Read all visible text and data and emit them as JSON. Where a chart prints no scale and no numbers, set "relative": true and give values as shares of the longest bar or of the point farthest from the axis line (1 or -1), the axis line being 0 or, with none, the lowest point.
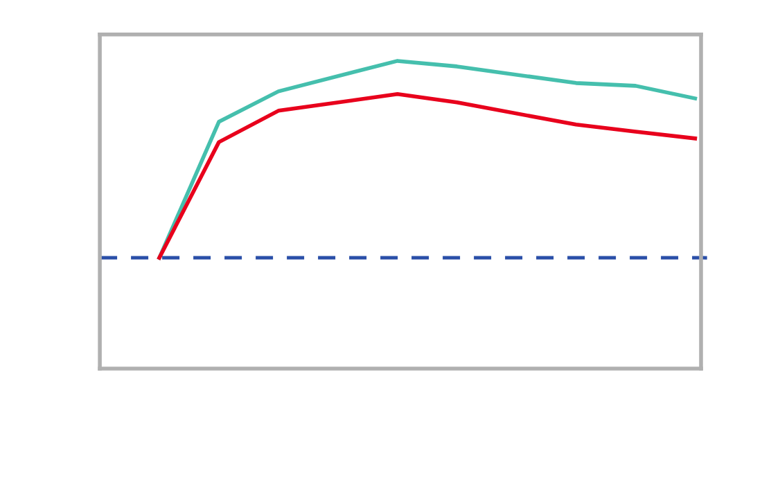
{
  "chart_data": {
    "type": "line",
    "relative": true,
    "categories": [
      null,
      null,
      null,
      null,
      null,
      null,
      null,
      null,
      null,
      null,
      null
    ],
    "series": [
      {
        "color": "#45bfad",
        "values": [
          null,
          0.36,
          0.802,
          0.901,
          null,
          1.0,
          0.982,
          null,
          0.928,
          0.919,
          0.878
        ]
      },
      {
        "color": "#e8001c",
        "values": [
          null,
          0.36,
          0.736,
          0.838,
          null,
          0.892,
          0.865,
          null,
          0.793,
          0.77,
          0.748
        ]
      }
    ],
    "ref_lines": [
      {
        "axis": "y",
        "value": 0.36,
        "color": "#2a4fa8",
        "line_style": "dashed"
      }
    ],
    "line_style": "solid",
    "marker": "none",
    "grid": false,
    "legend": false
  }
}
